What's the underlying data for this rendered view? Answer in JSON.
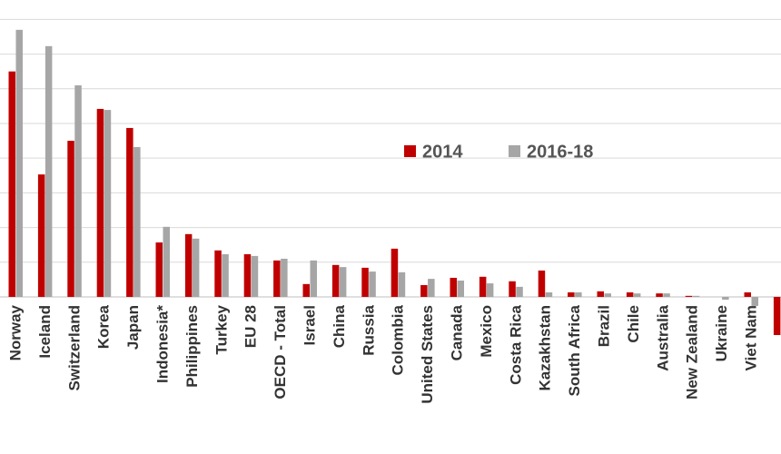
{
  "chart_data": {
    "type": "bar",
    "categories": [
      "Norway",
      "Iceland",
      "Switzerland",
      "Korea",
      "Japan",
      "Indonesia*",
      "Philippines",
      "Turkey",
      "EU 28",
      "OECD - Total",
      "Israel",
      "China",
      "Russia",
      "Colombia",
      "United States",
      "Canada",
      "Mexico",
      "Costa Rica",
      "Kazakhstan",
      "South Africa",
      "Brazil",
      "Chile",
      "Australia",
      "New Zealand",
      "Ukraine",
      "Viet Nam",
      null
    ],
    "series": [
      {
        "name": "2014",
        "color": "#c00000",
        "values": [
          6.5,
          3.53,
          4.5,
          5.42,
          4.87,
          1.57,
          1.81,
          1.34,
          1.23,
          1.05,
          0.37,
          0.92,
          0.84,
          1.39,
          0.34,
          0.55,
          0.58,
          0.45,
          0.76,
          0.13,
          0.16,
          0.13,
          0.1,
          0.03,
          0,
          0.13,
          -1.1
        ]
      },
      {
        "name": "2016-18",
        "color": "#a6a6a6",
        "values": [
          7.7,
          7.23,
          6.1,
          5.39,
          4.32,
          2.02,
          1.68,
          1.23,
          1.18,
          1.1,
          1.05,
          0.86,
          0.73,
          0.71,
          0.52,
          0.47,
          0.39,
          0.29,
          0.13,
          0.13,
          0.1,
          0.1,
          0.1,
          0.03,
          -0.08,
          -0.26,
          null
        ]
      }
    ],
    "ylim": [
      -4.53,
      8.56
    ],
    "yticks": [
      0,
      1,
      2,
      3,
      4,
      5,
      6,
      7,
      8
    ],
    "grid": true,
    "legend": "right"
  }
}
